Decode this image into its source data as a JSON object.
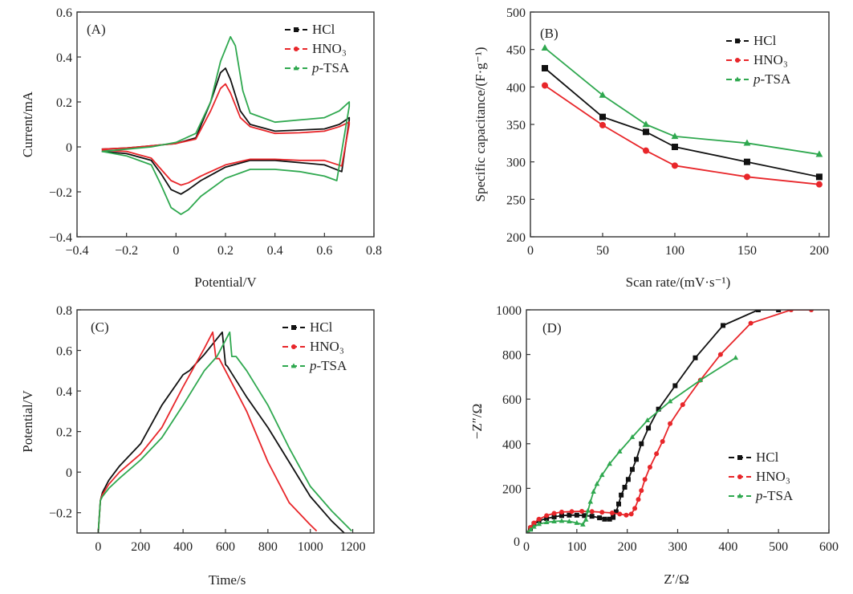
{
  "colors": {
    "HCl": "#111111",
    "HNO3": "#e8262a",
    "p-TSA": "#2fa84f"
  },
  "chart_data": [
    {
      "id": "A",
      "type": "line",
      "panel_label": "(A)",
      "title": "",
      "xlabel": "Potential/V",
      "ylabel": "Current/mA",
      "xlim": [
        -0.4,
        0.8
      ],
      "ylim": [
        -0.4,
        0.6
      ],
      "xticks": [
        -0.4,
        -0.2,
        0,
        0.2,
        0.4,
        0.6,
        0.8
      ],
      "xtick_labels": [
        "−0.4",
        "−0.2",
        "0",
        "0.2",
        "0.4",
        "0.6",
        "0.8"
      ],
      "yticks": [
        -0.4,
        -0.2,
        0,
        0.2,
        0.4,
        0.6
      ],
      "ytick_labels": [
        "−0.4",
        "−0.2",
        "0",
        "0.2",
        "0.4",
        "0.6"
      ],
      "legend": "top-right",
      "markers_on_curve": false,
      "series": [
        {
          "name": "HCl",
          "legend_label": "HCl",
          "marker": "square",
          "x": [
            -0.3,
            -0.2,
            -0.1,
            0,
            0.08,
            0.14,
            0.18,
            0.2,
            0.22,
            0.26,
            0.3,
            0.4,
            0.5,
            0.6,
            0.66,
            0.7,
            0.7,
            0.67,
            0.6,
            0.5,
            0.4,
            0.3,
            0.2,
            0.1,
            0.05,
            0.02,
            -0.02,
            -0.06,
            -0.1,
            -0.2,
            -0.3
          ],
          "y": [
            -0.01,
            -0.005,
            0.005,
            0.015,
            0.04,
            0.2,
            0.33,
            0.35,
            0.3,
            0.16,
            0.1,
            0.07,
            0.075,
            0.08,
            0.1,
            0.13,
            0.12,
            -0.11,
            -0.08,
            -0.07,
            -0.06,
            -0.06,
            -0.09,
            -0.15,
            -0.19,
            -0.21,
            -0.19,
            -0.12,
            -0.06,
            -0.03,
            -0.02
          ]
        },
        {
          "name": "HNO3",
          "legend_label": "HNO₃",
          "marker": "circle",
          "x": [
            -0.3,
            -0.2,
            -0.1,
            0,
            0.08,
            0.14,
            0.18,
            0.2,
            0.22,
            0.26,
            0.3,
            0.4,
            0.5,
            0.6,
            0.66,
            0.7,
            0.7,
            0.67,
            0.6,
            0.5,
            0.4,
            0.3,
            0.2,
            0.1,
            0.05,
            0.02,
            -0.02,
            -0.06,
            -0.1,
            -0.2,
            -0.3
          ],
          "y": [
            -0.01,
            -0.005,
            0.005,
            0.015,
            0.035,
            0.16,
            0.26,
            0.28,
            0.24,
            0.13,
            0.09,
            0.06,
            0.063,
            0.07,
            0.09,
            0.11,
            0.1,
            -0.085,
            -0.06,
            -0.06,
            -0.055,
            -0.055,
            -0.08,
            -0.13,
            -0.16,
            -0.17,
            -0.15,
            -0.1,
            -0.05,
            -0.02,
            -0.015
          ]
        },
        {
          "name": "p-TSA",
          "legend_label": "p-TSA",
          "marker": "triangle",
          "x": [
            -0.3,
            -0.2,
            -0.1,
            0,
            0.08,
            0.14,
            0.18,
            0.22,
            0.24,
            0.27,
            0.3,
            0.4,
            0.5,
            0.6,
            0.66,
            0.7,
            0.7,
            0.65,
            0.6,
            0.5,
            0.4,
            0.3,
            0.2,
            0.1,
            0.05,
            0.02,
            -0.02,
            -0.06,
            -0.1,
            -0.2,
            -0.3
          ],
          "y": [
            -0.02,
            -0.01,
            0,
            0.02,
            0.06,
            0.2,
            0.38,
            0.49,
            0.45,
            0.25,
            0.15,
            0.11,
            0.12,
            0.13,
            0.16,
            0.2,
            0.18,
            -0.15,
            -0.13,
            -0.11,
            -0.1,
            -0.1,
            -0.14,
            -0.22,
            -0.28,
            -0.3,
            -0.27,
            -0.17,
            -0.08,
            -0.04,
            -0.02
          ]
        }
      ]
    },
    {
      "id": "B",
      "type": "line",
      "panel_label": "(B)",
      "title": "",
      "xlabel": "Scan rate/(mV·s⁻¹)",
      "ylabel": "Specific capacitance/(F·g⁻¹)",
      "xlim": [
        0,
        206.7
      ],
      "ylim": [
        200,
        500
      ],
      "xticks": [
        0,
        50,
        100,
        150,
        200
      ],
      "xtick_labels": [
        "0",
        "50",
        "100",
        "150",
        "200"
      ],
      "yticks": [
        200,
        250,
        300,
        350,
        400,
        450,
        500
      ],
      "ytick_labels": [
        "200",
        "250",
        "300",
        "350",
        "400",
        "450",
        "500"
      ],
      "legend": "top-right",
      "markers_on_curve": true,
      "x": [
        10,
        50,
        80,
        100,
        150,
        200
      ],
      "series": [
        {
          "name": "HCl",
          "legend_label": "HCl",
          "marker": "square",
          "y": [
            425,
            360,
            340,
            320,
            300,
            280
          ]
        },
        {
          "name": "HNO3",
          "legend_label": "HNO₃",
          "marker": "circle",
          "y": [
            402,
            349,
            315,
            295,
            280,
            270
          ]
        },
        {
          "name": "p-TSA",
          "legend_label": "p-TSA",
          "marker": "triangle",
          "y": [
            452,
            389,
            350,
            334,
            325,
            310
          ]
        }
      ]
    },
    {
      "id": "C",
      "type": "line",
      "panel_label": "(C)",
      "title": "",
      "xlabel": "Time/s",
      "ylabel": "Potential/V",
      "xlim": [
        -100,
        1300
      ],
      "ylim": [
        -0.3,
        0.8
      ],
      "xticks": [
        0,
        200,
        400,
        600,
        800,
        1000,
        1200
      ],
      "xtick_labels": [
        "0",
        "200",
        "400",
        "600",
        "800",
        "1000",
        "1200"
      ],
      "yticks": [
        -0.2,
        0,
        0.2,
        0.4,
        0.6,
        0.8
      ],
      "ytick_labels": [
        "−0.2",
        "0",
        "0.2",
        "0.4",
        "0.6",
        "0.8"
      ],
      "legend": "top-right",
      "markers_on_curve": false,
      "series": [
        {
          "name": "HCl",
          "legend_label": "HCl",
          "marker": "square",
          "x": [
            0,
            10,
            20,
            50,
            100,
            200,
            300,
            400,
            430,
            500,
            585,
            600,
            610,
            700,
            800,
            900,
            1000,
            1100,
            1160
          ],
          "y": [
            -0.3,
            -0.14,
            -0.1,
            -0.04,
            0.03,
            0.14,
            0.33,
            0.48,
            0.5,
            0.58,
            0.69,
            0.53,
            0.52,
            0.37,
            0.22,
            0.05,
            -0.12,
            -0.24,
            -0.3
          ]
        },
        {
          "name": "HNO3",
          "legend_label": "HNO₃",
          "marker": "circle",
          "x": [
            0,
            10,
            20,
            50,
            100,
            200,
            300,
            400,
            500,
            540,
            555,
            570,
            600,
            700,
            800,
            900,
            1000,
            1030
          ],
          "y": [
            -0.3,
            -0.14,
            -0.11,
            -0.06,
            0.0,
            0.09,
            0.22,
            0.42,
            0.61,
            0.69,
            0.56,
            0.56,
            0.5,
            0.3,
            0.05,
            -0.15,
            -0.26,
            -0.29
          ]
        },
        {
          "name": "p-TSA",
          "legend_label": "p-TSA",
          "marker": "triangle",
          "x": [
            0,
            10,
            20,
            50,
            100,
            200,
            300,
            400,
            500,
            560,
            620,
            630,
            650,
            700,
            800,
            900,
            1000,
            1100,
            1195
          ],
          "y": [
            -0.3,
            -0.14,
            -0.12,
            -0.08,
            -0.03,
            0.06,
            0.17,
            0.33,
            0.5,
            0.57,
            0.69,
            0.57,
            0.57,
            0.5,
            0.33,
            0.12,
            -0.07,
            -0.19,
            -0.29
          ]
        }
      ]
    },
    {
      "id": "D",
      "type": "scatter",
      "panel_label": "(D)",
      "title": "",
      "xlabel": "Z′/Ω",
      "ylabel": "−Z″/Ω",
      "xlim": [
        0,
        600
      ],
      "ylim": [
        0,
        1000
      ],
      "xticks": [
        0,
        100,
        200,
        300,
        400,
        500,
        600
      ],
      "xtick_labels": [
        "0",
        "100",
        "200",
        "300",
        "400",
        "500",
        "600"
      ],
      "yticks": [
        200,
        400,
        600,
        800,
        1000
      ],
      "ytick_labels": [
        "200",
        "400",
        "600",
        "800",
        "1000"
      ],
      "legend": "bottom-right",
      "markers_on_curve": true,
      "series": [
        {
          "name": "HCl",
          "legend_label": "HCl",
          "marker": "square",
          "x": [
            2,
            8,
            15,
            25,
            40,
            55,
            70,
            85,
            100,
            115,
            130,
            145,
            155,
            165,
            172,
            178,
            183,
            188,
            195,
            202,
            210,
            218,
            228,
            242,
            262,
            295,
            335,
            390,
            460,
            500
          ],
          "y": [
            0,
            20,
            40,
            55,
            65,
            72,
            78,
            80,
            80,
            78,
            75,
            68,
            62,
            62,
            70,
            95,
            130,
            170,
            205,
            240,
            285,
            330,
            400,
            470,
            555,
            660,
            785,
            930,
            1000,
            1000
          ]
        },
        {
          "name": "HNO3",
          "legend_label": "HNO₃",
          "marker": "circle",
          "x": [
            2,
            8,
            15,
            25,
            40,
            55,
            70,
            90,
            110,
            130,
            150,
            170,
            185,
            198,
            208,
            215,
            222,
            228,
            235,
            245,
            258,
            270,
            285,
            310,
            345,
            385,
            445,
            525,
            565
          ],
          "y": [
            0,
            25,
            45,
            62,
            78,
            88,
            94,
            96,
            97,
            96,
            93,
            90,
            85,
            80,
            85,
            110,
            150,
            190,
            240,
            295,
            355,
            410,
            490,
            575,
            685,
            800,
            940,
            1000,
            1000
          ]
        },
        {
          "name": "p-TSA",
          "legend_label": "p-TSA",
          "marker": "triangle",
          "x": [
            2,
            8,
            15,
            25,
            40,
            55,
            70,
            85,
            100,
            112,
            118,
            122,
            127,
            133,
            140,
            150,
            165,
            185,
            210,
            240,
            285,
            345,
            415
          ],
          "y": [
            0,
            15,
            28,
            40,
            48,
            52,
            54,
            52,
            45,
            38,
            60,
            100,
            140,
            185,
            220,
            260,
            310,
            365,
            430,
            505,
            590,
            685,
            785
          ]
        }
      ]
    }
  ]
}
